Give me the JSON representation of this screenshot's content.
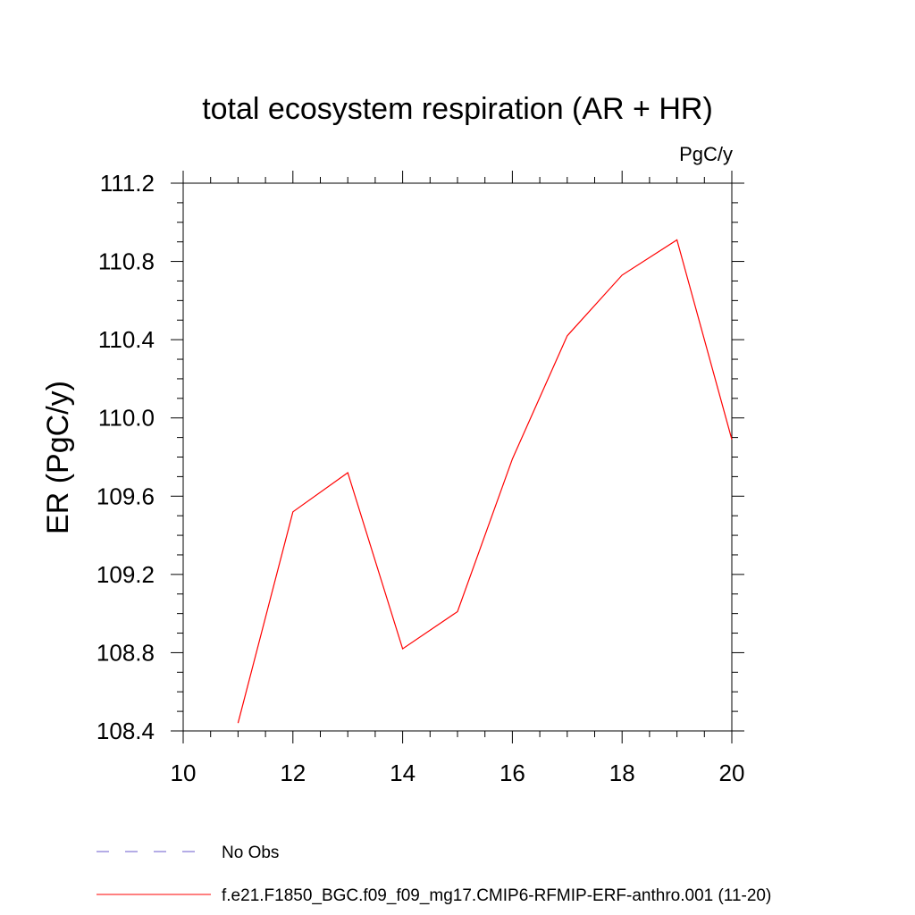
{
  "chart_data": {
    "type": "line",
    "title": "total ecosystem respiration (AR + HR)",
    "units": "PgC/y",
    "ylabel": "ER  (PgC/y)",
    "xlabel": "",
    "xlim": [
      10,
      20
    ],
    "ylim": [
      108.4,
      111.2
    ],
    "xticks": [
      10,
      12,
      14,
      16,
      18,
      20
    ],
    "xtick_labels": [
      "10",
      "12",
      "14",
      "16",
      "18",
      "20"
    ],
    "yticks": [
      108.4,
      108.8,
      109.2,
      109.6,
      110.0,
      110.4,
      110.8,
      111.2
    ],
    "ytick_labels": [
      "108.4",
      "108.8",
      "109.2",
      "109.6",
      "110.0",
      "110.4",
      "110.8",
      "111.2"
    ],
    "grid": false,
    "series": [
      {
        "name": "f.e21.F1850_BGC.f09_f09_mg17.CMIP6-RFMIP-ERF-anthro.001 (11-20)",
        "color": "#ff0000",
        "style": "solid",
        "x": [
          11,
          12,
          13,
          14,
          15,
          16,
          17,
          18,
          19,
          20
        ],
        "y": [
          108.44,
          109.52,
          109.72,
          108.82,
          109.01,
          109.79,
          110.42,
          110.73,
          110.91,
          109.89
        ]
      }
    ],
    "legend": [
      {
        "label": "No Obs",
        "color": "#6a5acd",
        "style": "dashed"
      },
      {
        "label": "f.e21.F1850_BGC.f09_f09_mg17.CMIP6-RFMIP-ERF-anthro.001 (11-20)",
        "color": "#ff0000",
        "style": "solid"
      }
    ],
    "legend_position": "bottom-left"
  }
}
